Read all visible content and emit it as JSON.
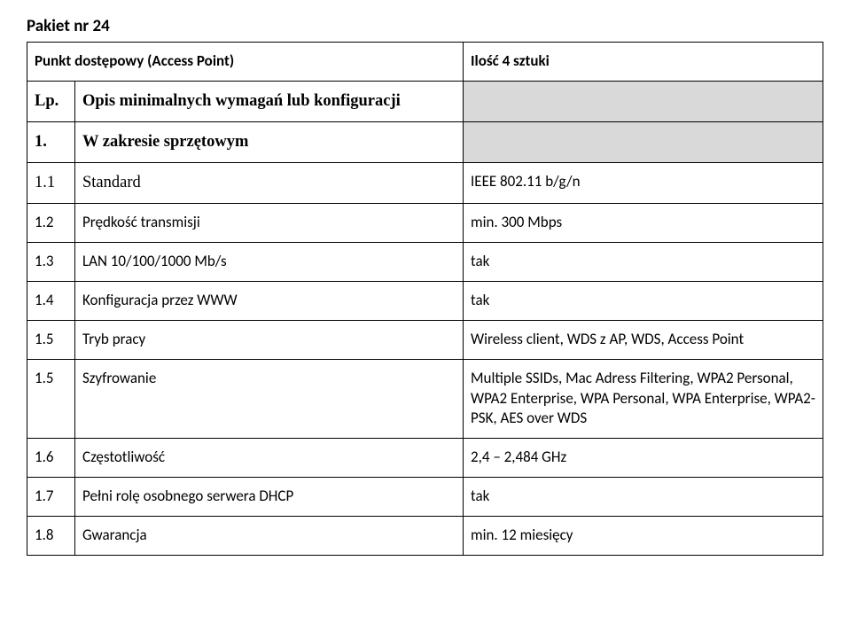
{
  "heading": "Pakiet  nr 24",
  "table": {
    "subtitle_left": "Punkt dostępowy (Access Point)",
    "subtitle_right": "Ilość 4 sztuki",
    "header": {
      "lp": "Lp.",
      "desc": "Opis minimalnych wymagań lub konfiguracji"
    },
    "section1": {
      "num": "1.",
      "label": "W zakresie sprzętowym"
    },
    "rows": [
      {
        "num": "1.1",
        "label": "Standard",
        "value": "IEEE 802.11 b/g/n",
        "serif": true
      },
      {
        "num": "1.2",
        "label": "Prędkość transmisji",
        "value": "min. 300 Mbps"
      },
      {
        "num": "1.3",
        "label": "LAN 10/100/1000 Mb/s",
        "value": "tak"
      },
      {
        "num": "1.4",
        "label": "Konfiguracja przez WWW",
        "value": "tak"
      },
      {
        "num": "1.5",
        "label": "Tryb pracy",
        "value": "Wireless client, WDS z AP, WDS, Access Point"
      },
      {
        "num": "1.5",
        "label": "Szyfrowanie",
        "value": "Multiple SSIDs, Mac Adress Filtering, WPA2 Personal, WPA2 Enterprise, WPA Personal, WPA Enterprise, WPA2-PSK, AES over WDS"
      },
      {
        "num": "1.6",
        "label": "Częstotliwość",
        "value": "2,4 – 2,484 GHz"
      },
      {
        "num": "1.7",
        "label": "Pełni rolę osobnego serwera DHCP",
        "value": "tak"
      },
      {
        "num": "1.8",
        "label": "Gwarancja",
        "value": "min. 12 miesięcy"
      }
    ]
  },
  "colors": {
    "border": "#000000",
    "background": "#ffffff",
    "shaded": "#d9d9d9",
    "text": "#000000"
  }
}
